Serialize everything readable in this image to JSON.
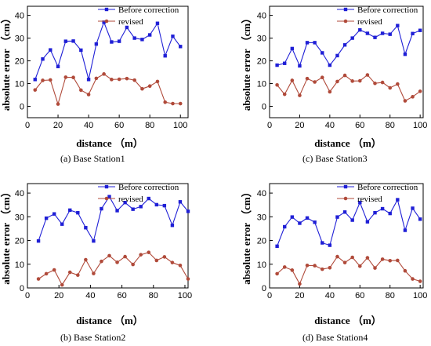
{
  "chart_data": [
    {
      "type": "line",
      "caption": "(a)   Base Station1",
      "xlabel": "distance （m）",
      "ylabel": "absolute error （cm）",
      "xlim": [
        0,
        105
      ],
      "ylim": [
        -5,
        44
      ],
      "xticks": [
        0,
        20,
        40,
        60,
        80,
        100
      ],
      "yticks": [
        0,
        10,
        20,
        30,
        40
      ],
      "legend_position": "top-right",
      "x": [
        5,
        10,
        15,
        20,
        25,
        30,
        35,
        40,
        45,
        50,
        55,
        60,
        65,
        70,
        75,
        80,
        85,
        90,
        95,
        100
      ],
      "series": [
        {
          "name": "Before correction",
          "color": "#1f1fd6",
          "marker": "square",
          "values": [
            11.8,
            20.8,
            24.8,
            17.5,
            28.6,
            28.7,
            24.7,
            11.8,
            27.4,
            37.0,
            28.3,
            28.6,
            34.7,
            30.0,
            29.4,
            31.4,
            36.5,
            22.2,
            30.8,
            26.3
          ]
        },
        {
          "name": "revised",
          "color": "#b04a3a",
          "marker": "circle",
          "values": [
            7.2,
            11.4,
            11.6,
            1.0,
            12.8,
            12.7,
            7.1,
            5.2,
            12.3,
            14.2,
            11.8,
            11.9,
            12.2,
            11.5,
            7.7,
            8.9,
            10.9,
            1.8,
            1.2,
            1.2
          ]
        }
      ]
    },
    {
      "type": "line",
      "caption": "(c)   Base Station3",
      "xlabel": "distance （m）",
      "ylabel": "absolute error （cm）",
      "xlim": [
        0,
        102
      ],
      "ylim": [
        -5,
        44
      ],
      "xticks": [
        0,
        20,
        40,
        60,
        80,
        100
      ],
      "yticks": [
        0,
        10,
        20,
        30,
        40
      ],
      "legend_position": "top-right",
      "x": [
        5,
        10,
        15,
        20,
        25,
        30,
        35,
        40,
        45,
        50,
        55,
        60,
        65,
        70,
        75,
        80,
        85,
        90,
        95,
        100
      ],
      "series": [
        {
          "name": "Before correction",
          "color": "#1f1fd6",
          "marker": "square",
          "values": [
            18.1,
            18.9,
            25.4,
            17.8,
            28.0,
            28.0,
            23.5,
            18.1,
            22.3,
            27.0,
            30.0,
            33.6,
            32.1,
            30.3,
            32.1,
            31.7,
            35.5,
            22.9,
            32.0,
            33.4
          ]
        },
        {
          "name": "revised",
          "color": "#b04a3a",
          "marker": "circle",
          "values": [
            9.4,
            5.3,
            11.4,
            4.8,
            12.2,
            10.7,
            12.7,
            6.4,
            10.9,
            13.6,
            11.1,
            11.2,
            13.8,
            10.1,
            10.5,
            8.1,
            9.8,
            2.4,
            4.2,
            6.6
          ]
        }
      ]
    },
    {
      "type": "line",
      "caption": "(b)   Base Station2",
      "xlabel": "distance （m）",
      "ylabel": "absolute error （cm）",
      "xlim": [
        0,
        102
      ],
      "ylim": [
        0,
        44
      ],
      "xticks": [
        0,
        20,
        40,
        60,
        80,
        100
      ],
      "yticks": [
        0,
        10,
        20,
        30,
        40
      ],
      "legend_position": "top-right",
      "x": [
        7,
        12,
        17,
        22,
        27,
        32,
        37,
        42,
        47,
        52,
        57,
        62,
        67,
        72,
        77,
        82,
        87,
        92,
        97,
        102
      ],
      "series": [
        {
          "name": "Before correction",
          "color": "#1f1fd6",
          "marker": "square",
          "values": [
            19.8,
            29.4,
            31.2,
            26.9,
            32.8,
            31.7,
            25.4,
            19.8,
            33.4,
            38.5,
            32.6,
            36.0,
            33.2,
            34.3,
            37.7,
            35.1,
            34.7,
            26.4,
            36.3,
            32.3
          ]
        },
        {
          "name": "revised",
          "color": "#b04a3a",
          "marker": "circle",
          "values": [
            3.8,
            6.0,
            7.6,
            1.3,
            6.6,
            5.4,
            11.9,
            6.1,
            11.2,
            13.6,
            10.8,
            13.2,
            9.9,
            14.0,
            15.0,
            11.6,
            13.1,
            10.7,
            9.5,
            3.8
          ]
        }
      ]
    },
    {
      "type": "line",
      "caption": "(d)   Base Station4",
      "xlabel": "distance （m）",
      "ylabel": "absolute error （cm）",
      "xlim": [
        0,
        102
      ],
      "ylim": [
        0,
        44
      ],
      "xticks": [
        0,
        20,
        40,
        60,
        80,
        100
      ],
      "yticks": [
        0,
        10,
        20,
        30,
        40
      ],
      "legend_position": "top-right",
      "x": [
        5,
        10,
        15,
        20,
        25,
        30,
        35,
        40,
        45,
        50,
        55,
        60,
        65,
        70,
        75,
        80,
        85,
        90,
        95,
        100
      ],
      "series": [
        {
          "name": "Before correction",
          "color": "#1f1fd6",
          "marker": "square",
          "values": [
            17.6,
            25.8,
            29.9,
            27.3,
            29.5,
            27.7,
            19.0,
            18.0,
            29.9,
            32.0,
            28.6,
            36.0,
            27.9,
            31.7,
            33.4,
            31.4,
            37.2,
            24.3,
            33.6,
            29.0
          ]
        },
        {
          "name": "revised",
          "color": "#b04a3a",
          "marker": "circle",
          "values": [
            6.0,
            8.8,
            7.5,
            1.7,
            9.5,
            9.4,
            7.9,
            8.5,
            13.2,
            10.7,
            12.9,
            9.2,
            12.7,
            8.4,
            12.1,
            11.5,
            11.6,
            7.2,
            3.8,
            2.8
          ]
        }
      ]
    }
  ]
}
